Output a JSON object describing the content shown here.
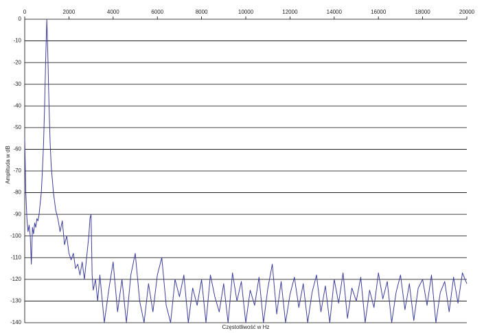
{
  "chart_data": {
    "type": "line",
    "x_label": "Częstotliwość w Hz",
    "y_label": "Amplituda w dB",
    "xlim": [
      0,
      20000
    ],
    "xticks": [
      0,
      2000,
      4000,
      6000,
      8000,
      10000,
      12000,
      14000,
      16000,
      18000,
      20000
    ],
    "ylim": [
      -140,
      0
    ],
    "yticks": [
      0,
      -10,
      -20,
      -30,
      -40,
      -50,
      -60,
      -70,
      -80,
      -90,
      -100,
      -110,
      -120,
      -130,
      -140
    ],
    "grid": true,
    "series": [
      {
        "color": "#3b3b9c",
        "x": [
          0,
          50,
          100,
          150,
          200,
          250,
          300,
          350,
          400,
          450,
          500,
          550,
          600,
          650,
          700,
          750,
          800,
          850,
          900,
          950,
          1000,
          1050,
          1100,
          1150,
          1200,
          1300,
          1400,
          1500,
          1600,
          1700,
          1800,
          1900,
          2000,
          2100,
          2200,
          2300,
          2400,
          2500,
          2600,
          2700,
          2800,
          2900,
          2950,
          3000,
          3050,
          3100,
          3200,
          3300,
          3400,
          3600,
          3800,
          4000,
          4200,
          4400,
          4600,
          4800,
          5000,
          5200,
          5400,
          5600,
          5800,
          6000,
          6200,
          6400,
          6600,
          6800,
          7000,
          7200,
          7400,
          7600,
          7800,
          8000,
          8200,
          8400,
          8600,
          8800,
          9000,
          9200,
          9400,
          9600,
          9800,
          10000,
          10200,
          10400,
          10600,
          10800,
          11000,
          11200,
          11400,
          11600,
          11800,
          12000,
          12200,
          12400,
          12600,
          12800,
          13000,
          13200,
          13400,
          13600,
          13800,
          14000,
          14200,
          14400,
          14600,
          14800,
          15000,
          15200,
          15400,
          15600,
          15800,
          16000,
          16200,
          16400,
          16600,
          16800,
          17000,
          17200,
          17400,
          17600,
          17800,
          18000,
          18200,
          18400,
          18600,
          18800,
          19000,
          19200,
          19400,
          19600,
          19800,
          20000
        ],
        "values": [
          -55,
          -80,
          -92,
          -98,
          -95,
          -100,
          -113,
          -96,
          -99,
          -94,
          -96,
          -92,
          -93,
          -90,
          -85,
          -80,
          -70,
          -58,
          -40,
          -18,
          0,
          -18,
          -40,
          -57,
          -68,
          -80,
          -88,
          -92,
          -98,
          -93,
          -104,
          -100,
          -108,
          -111,
          -108,
          -115,
          -113,
          -118,
          -112,
          -120,
          -110,
          -100,
          -92,
          -90,
          -118,
          -125,
          -120,
          -130,
          -118,
          -140,
          -125,
          -112,
          -135,
          -120,
          -140,
          -118,
          -108,
          -130,
          -140,
          -122,
          -135,
          -118,
          -110,
          -132,
          -140,
          -120,
          -128,
          -118,
          -140,
          -124,
          -132,
          -120,
          -140,
          -118,
          -128,
          -135,
          -122,
          -140,
          -117,
          -130,
          -121,
          -140,
          -125,
          -132,
          -119,
          -140,
          -124,
          -113,
          -136,
          -121,
          -140,
          -127,
          -119,
          -133,
          -122,
          -140,
          -126,
          -118,
          -135,
          -123,
          -140,
          -120,
          -131,
          -117,
          -138,
          -124,
          -130,
          -119,
          -140,
          -125,
          -133,
          -117,
          -129,
          -121,
          -140,
          -126,
          -118,
          -134,
          -122,
          -139,
          -124,
          -120,
          -132,
          -118,
          -140,
          -126,
          -121,
          -135,
          -119,
          -131,
          -117,
          -122
        ]
      }
    ]
  }
}
